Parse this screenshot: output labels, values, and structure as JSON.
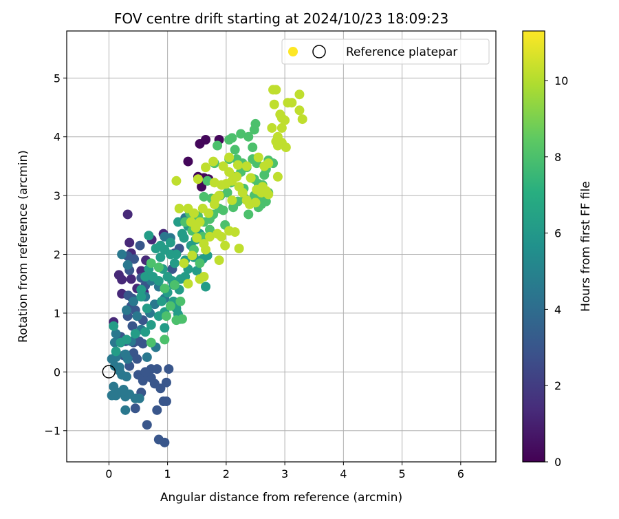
{
  "chart_data": {
    "type": "scatter",
    "title": "FOV centre drift starting at 2024/10/23 18:09:23",
    "xlabel": "Angular distance from reference (arcmin)",
    "ylabel": "Rotation from reference (arcmin)",
    "xlim": [
      -0.72,
      6.6
    ],
    "ylim": [
      -1.53,
      5.8
    ],
    "xticks": [
      0,
      1,
      2,
      3,
      4,
      5,
      6
    ],
    "yticks": [
      -1,
      0,
      1,
      2,
      3,
      4,
      5
    ],
    "xtick_labels": [
      "0",
      "1",
      "2",
      "3",
      "4",
      "5",
      "6"
    ],
    "ytick_labels": [
      "−1",
      "0",
      "1",
      "2",
      "3",
      "4",
      "5"
    ],
    "grid": true,
    "legend": {
      "position": "top-right",
      "entries": [
        "Reference platepar"
      ]
    },
    "colorbar": {
      "label": "Hours from first FF file",
      "range": [
        0,
        11.3
      ],
      "ticks": [
        0,
        2,
        4,
        6,
        8,
        10
      ],
      "tick_labels": [
        "0",
        "2",
        "4",
        "6",
        "8",
        "10"
      ],
      "colormap": "viridis"
    },
    "reference_point": {
      "x": 0,
      "y": 0
    },
    "series": [
      {
        "hours": 0.2,
        "points": [
          [
            1.35,
            3.58
          ],
          [
            1.55,
            3.88
          ],
          [
            1.65,
            3.95
          ],
          [
            1.88,
            3.95
          ],
          [
            1.52,
            3.32
          ],
          [
            1.62,
            3.3
          ],
          [
            1.7,
            3.28
          ],
          [
            1.58,
            3.15
          ],
          [
            1.9,
            3.0
          ]
        ]
      },
      {
        "hours": 1.3,
        "points": [
          [
            0.32,
            2.68
          ],
          [
            0.17,
            1.65
          ],
          [
            0.22,
            1.57
          ],
          [
            0.38,
            1.58
          ],
          [
            0.22,
            1.33
          ],
          [
            0.35,
            2.2
          ],
          [
            0.38,
            2.02
          ],
          [
            0.55,
            1.72
          ],
          [
            0.73,
            2.25
          ],
          [
            0.63,
            1.9
          ],
          [
            0.93,
            2.35
          ],
          [
            0.48,
            1.42
          ],
          [
            0.6,
            1.35
          ],
          [
            0.08,
            0.85
          ]
        ]
      },
      {
        "hours": 3.0,
        "points": [
          [
            0.43,
            1.92
          ],
          [
            0.53,
            2.15
          ],
          [
            0.32,
            1.97
          ],
          [
            0.35,
            1.73
          ],
          [
            0.33,
            1.3
          ],
          [
            0.4,
            1.25
          ],
          [
            0.55,
            1.6
          ],
          [
            0.62,
            1.47
          ],
          [
            0.38,
            1.12
          ],
          [
            0.32,
            0.95
          ],
          [
            0.45,
            1.05
          ],
          [
            0.58,
            0.88
          ],
          [
            0.2,
            0.6
          ],
          [
            0.28,
            0.52
          ],
          [
            0.42,
            0.5
          ],
          [
            0.52,
            0.52
          ],
          [
            0.58,
            0.48
          ],
          [
            0.42,
            0.32
          ],
          [
            0.48,
            0.22
          ],
          [
            0.25,
            0.28
          ],
          [
            0.35,
            0.1
          ],
          [
            0.5,
            -0.05
          ],
          [
            0.58,
            -0.15
          ],
          [
            0.62,
            -0.05
          ],
          [
            0.72,
            -0.1
          ],
          [
            0.78,
            -0.2
          ],
          [
            0.88,
            -0.28
          ],
          [
            0.98,
            -0.18
          ],
          [
            0.72,
            0.05
          ],
          [
            1.02,
            0.05
          ],
          [
            0.55,
            -0.35
          ],
          [
            0.82,
            -0.65
          ],
          [
            0.93,
            -0.5
          ],
          [
            0.98,
            -0.5
          ],
          [
            0.65,
            -0.9
          ],
          [
            0.85,
            -1.15
          ],
          [
            0.95,
            -1.2
          ],
          [
            0.45,
            -0.62
          ],
          [
            0.4,
            0.78
          ],
          [
            0.82,
            0.05
          ],
          [
            0.62,
            0.0
          ],
          [
            1.2,
            2.1
          ],
          [
            1.08,
            1.75
          ],
          [
            1.12,
            2.02
          ]
        ]
      },
      {
        "hours": 4.5,
        "points": [
          [
            0.22,
            2.0
          ],
          [
            0.32,
            1.82
          ],
          [
            0.42,
            1.2
          ],
          [
            0.3,
            1.05
          ],
          [
            0.48,
            0.95
          ],
          [
            0.7,
            1.0
          ],
          [
            0.78,
            1.15
          ],
          [
            0.62,
            1.28
          ],
          [
            0.72,
            1.55
          ],
          [
            0.85,
            1.45
          ],
          [
            0.95,
            1.25
          ],
          [
            0.55,
            0.72
          ],
          [
            0.1,
            0.5
          ],
          [
            0.12,
            0.25
          ],
          [
            0.05,
            0.22
          ],
          [
            0.1,
            0.1
          ],
          [
            0.18,
            0.08
          ],
          [
            0.28,
            0.3
          ],
          [
            0.32,
            0.22
          ],
          [
            0.38,
            0.52
          ],
          [
            0.08,
            -0.25
          ],
          [
            0.12,
            -0.4
          ],
          [
            0.05,
            -0.4
          ],
          [
            0.18,
            -0.35
          ],
          [
            0.28,
            -0.42
          ],
          [
            0.35,
            -0.38
          ],
          [
            0.45,
            -0.45
          ],
          [
            0.52,
            -0.45
          ],
          [
            0.3,
            -0.08
          ],
          [
            0.22,
            -0.05
          ],
          [
            0.28,
            -0.65
          ],
          [
            0.65,
            0.25
          ],
          [
            0.8,
            0.42
          ],
          [
            0.12,
            0.65
          ],
          [
            0.18,
            0.02
          ],
          [
            0.25,
            -0.3
          ],
          [
            0.95,
            2.3
          ],
          [
            1.05,
            2.28
          ],
          [
            1.3,
            2.62
          ]
        ]
      },
      {
        "hours": 6.2,
        "points": [
          [
            0.08,
            0.78
          ],
          [
            0.2,
            0.5
          ],
          [
            0.45,
            0.65
          ],
          [
            0.72,
            0.8
          ],
          [
            0.55,
            1.4
          ],
          [
            0.62,
            1.62
          ],
          [
            0.68,
            1.75
          ],
          [
            0.75,
            1.62
          ],
          [
            0.85,
            1.55
          ],
          [
            0.92,
            1.75
          ],
          [
            1.0,
            1.62
          ],
          [
            1.08,
            1.55
          ],
          [
            0.88,
            1.95
          ],
          [
            0.95,
            2.08
          ],
          [
            1.05,
            2.0
          ],
          [
            1.12,
            1.85
          ],
          [
            0.88,
            2.15
          ],
          [
            0.68,
            2.32
          ],
          [
            0.55,
            1.28
          ],
          [
            0.9,
            1.2
          ],
          [
            1.1,
            1.2
          ],
          [
            0.85,
            0.95
          ],
          [
            1.18,
            0.98
          ],
          [
            1.22,
            0.9
          ],
          [
            0.95,
            1.02
          ],
          [
            0.65,
            1.08
          ],
          [
            1.0,
            1.35
          ],
          [
            1.1,
            1.48
          ],
          [
            1.2,
            1.4
          ],
          [
            0.12,
            0.35
          ],
          [
            1.15,
            2.0
          ],
          [
            1.3,
            1.9
          ],
          [
            1.4,
            2.15
          ],
          [
            1.25,
            2.35
          ],
          [
            1.35,
            2.48
          ],
          [
            1.18,
            2.55
          ],
          [
            1.28,
            2.28
          ],
          [
            1.15,
            1.08
          ],
          [
            1.22,
            1.58
          ],
          [
            1.3,
            1.62
          ],
          [
            1.5,
            1.72
          ],
          [
            1.35,
            1.75
          ],
          [
            1.45,
            1.95
          ],
          [
            1.6,
            1.92
          ],
          [
            1.68,
            1.98
          ],
          [
            1.65,
            1.45
          ],
          [
            0.62,
            0.68
          ],
          [
            0.95,
            0.75
          ],
          [
            0.3,
            0.55
          ],
          [
            1.05,
            2.2
          ],
          [
            0.8,
            2.1
          ],
          [
            1.48,
            2.25
          ],
          [
            1.55,
            2.35
          ]
        ]
      },
      {
        "hours": 8.0,
        "points": [
          [
            0.72,
            1.85
          ],
          [
            0.85,
            1.78
          ],
          [
            0.95,
            1.42
          ],
          [
            1.05,
            1.12
          ],
          [
            1.12,
            1.48
          ],
          [
            1.22,
            1.2
          ],
          [
            0.98,
            0.95
          ],
          [
            1.15,
            0.88
          ],
          [
            1.25,
            0.9
          ],
          [
            0.95,
            0.55
          ],
          [
            0.72,
            0.5
          ],
          [
            1.3,
            2.55
          ],
          [
            1.38,
            2.7
          ],
          [
            1.6,
            2.3
          ],
          [
            1.72,
            2.42
          ],
          [
            1.78,
            2.68
          ],
          [
            1.88,
            2.78
          ],
          [
            1.98,
            2.5
          ],
          [
            2.02,
            3.05
          ],
          [
            2.08,
            3.22
          ],
          [
            2.15,
            3.32
          ],
          [
            2.25,
            3.4
          ],
          [
            2.18,
            3.62
          ],
          [
            2.28,
            3.55
          ],
          [
            2.35,
            3.48
          ],
          [
            2.45,
            3.62
          ],
          [
            2.48,
            3.28
          ],
          [
            2.55,
            3.2
          ],
          [
            2.62,
            3.18
          ],
          [
            2.72,
            3.05
          ],
          [
            2.42,
            2.9
          ],
          [
            2.55,
            2.8
          ],
          [
            2.6,
            2.85
          ],
          [
            2.38,
            2.68
          ],
          [
            2.15,
            3.78
          ],
          [
            2.1,
            3.98
          ],
          [
            2.38,
            4.0
          ],
          [
            2.48,
            4.12
          ],
          [
            2.5,
            4.22
          ],
          [
            2.25,
            4.05
          ],
          [
            2.8,
            3.55
          ],
          [
            2.72,
            3.6
          ],
          [
            1.9,
            3.0
          ],
          [
            1.75,
            2.95
          ],
          [
            1.62,
            2.98
          ],
          [
            1.68,
            3.25
          ],
          [
            1.8,
            3.55
          ],
          [
            2.05,
            3.62
          ],
          [
            2.45,
            3.82
          ],
          [
            2.2,
            2.9
          ],
          [
            2.32,
            2.95
          ],
          [
            2.6,
            2.95
          ],
          [
            2.68,
            2.9
          ],
          [
            1.95,
            2.75
          ],
          [
            2.12,
            2.8
          ],
          [
            2.05,
            3.95
          ],
          [
            1.85,
            3.85
          ],
          [
            2.52,
            3.55
          ],
          [
            2.65,
            3.35
          ],
          [
            1.55,
            1.85
          ],
          [
            1.45,
            2.08
          ],
          [
            1.52,
            2.65
          ],
          [
            1.42,
            2.4
          ],
          [
            1.62,
            2.55
          ],
          [
            1.72,
            2.6
          ],
          [
            2.48,
            3.0
          ],
          [
            2.3,
            3.12
          ],
          [
            2.68,
            3.45
          ]
        ]
      },
      {
        "hours": 10.2,
        "points": [
          [
            1.15,
            3.25
          ],
          [
            1.2,
            2.78
          ],
          [
            1.35,
            2.78
          ],
          [
            1.45,
            2.7
          ],
          [
            1.55,
            2.55
          ],
          [
            1.48,
            2.45
          ],
          [
            1.5,
            2.28
          ],
          [
            1.62,
            2.18
          ],
          [
            1.65,
            2.08
          ],
          [
            1.42,
            1.98
          ],
          [
            1.28,
            1.85
          ],
          [
            1.62,
            1.62
          ],
          [
            1.55,
            1.58
          ],
          [
            1.35,
            1.5
          ],
          [
            1.72,
            2.3
          ],
          [
            1.85,
            2.35
          ],
          [
            1.92,
            2.3
          ],
          [
            2.05,
            2.4
          ],
          [
            2.15,
            2.38
          ],
          [
            2.22,
            2.1
          ],
          [
            1.88,
            1.9
          ],
          [
            1.98,
            2.15
          ],
          [
            1.8,
            2.85
          ],
          [
            1.82,
            2.95
          ],
          [
            1.92,
            3.18
          ],
          [
            2.0,
            3.2
          ],
          [
            2.1,
            3.25
          ],
          [
            2.22,
            3.15
          ],
          [
            2.28,
            3.05
          ],
          [
            2.35,
            3.5
          ],
          [
            2.42,
            3.3
          ],
          [
            2.52,
            3.1
          ],
          [
            2.6,
            3.05
          ],
          [
            2.65,
            3.5
          ],
          [
            2.72,
            3.55
          ],
          [
            2.88,
            3.32
          ],
          [
            2.72,
            3.02
          ],
          [
            2.68,
            3.08
          ],
          [
            2.35,
            2.92
          ],
          [
            2.4,
            2.85
          ],
          [
            2.1,
            2.92
          ],
          [
            2.18,
            3.32
          ],
          [
            2.05,
            3.4
          ],
          [
            1.95,
            3.5
          ],
          [
            2.05,
            3.65
          ],
          [
            1.65,
            3.48
          ],
          [
            1.78,
            3.58
          ],
          [
            1.88,
            3.0
          ],
          [
            2.95,
            3.9
          ],
          [
            2.88,
            3.85
          ],
          [
            3.02,
            3.82
          ],
          [
            2.88,
            4.0
          ],
          [
            2.85,
            3.92
          ],
          [
            2.95,
            4.15
          ],
          [
            3.0,
            4.28
          ],
          [
            2.92,
            4.38
          ],
          [
            2.95,
            4.32
          ],
          [
            2.78,
            4.15
          ],
          [
            2.82,
            4.55
          ],
          [
            2.85,
            4.8
          ],
          [
            2.8,
            4.8
          ],
          [
            3.05,
            4.58
          ],
          [
            3.12,
            4.58
          ],
          [
            3.25,
            4.72
          ],
          [
            3.25,
            4.45
          ],
          [
            3.3,
            4.3
          ],
          [
            2.55,
            3.65
          ],
          [
            2.2,
            3.52
          ],
          [
            2.5,
            2.88
          ],
          [
            2.62,
            3.15
          ],
          [
            1.6,
            2.78
          ],
          [
            1.4,
            2.55
          ],
          [
            1.7,
            2.7
          ],
          [
            1.52,
            3.28
          ],
          [
            1.8,
            3.22
          ]
        ]
      }
    ]
  }
}
